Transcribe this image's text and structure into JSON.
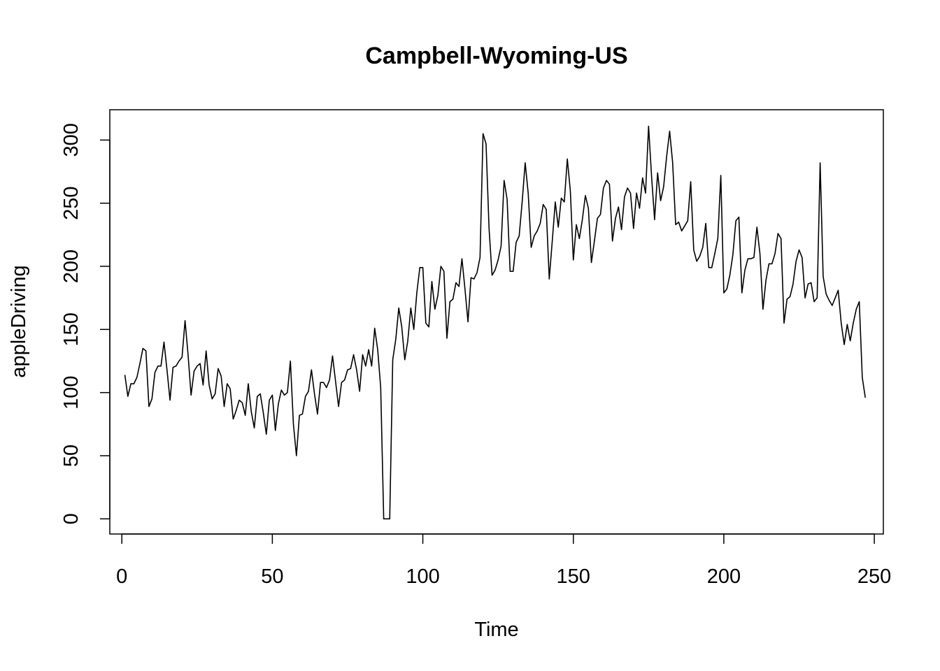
{
  "chart_data": {
    "type": "line",
    "title": "Campbell-Wyoming-US",
    "xlabel": "Time",
    "ylabel": "appleDriving",
    "xlim": [
      -4,
      253
    ],
    "ylim": [
      -12,
      324
    ],
    "x_ticks": [
      0,
      50,
      100,
      150,
      200,
      250
    ],
    "y_ticks": [
      0,
      50,
      100,
      150,
      200,
      250,
      300
    ],
    "grid": false,
    "line_color": "#000000",
    "series": [
      {
        "x_start": 1,
        "values": [
          114,
          97,
          107,
          107,
          112,
          123,
          135,
          133,
          89,
          95,
          116,
          121,
          121,
          140,
          118,
          94,
          120,
          121,
          125,
          128,
          157,
          130,
          98,
          117,
          121,
          123,
          106,
          133,
          106,
          95,
          99,
          119,
          113,
          89,
          107,
          103,
          79,
          86,
          94,
          92,
          82,
          107,
          85,
          72,
          97,
          99,
          84,
          67,
          94,
          98,
          70,
          91,
          102,
          98,
          100,
          125,
          75,
          50,
          82,
          83,
          97,
          101,
          118,
          99,
          83,
          108,
          108,
          104,
          110,
          129,
          109,
          89,
          108,
          110,
          118,
          119,
          130,
          118,
          101,
          130,
          121,
          134,
          121,
          151,
          134,
          104,
          0,
          0,
          0,
          126,
          142,
          167,
          152,
          126,
          141,
          167,
          150,
          179,
          199,
          199,
          155,
          152,
          188,
          166,
          177,
          200,
          196,
          143,
          172,
          174,
          187,
          184,
          206,
          182,
          156,
          191,
          190,
          195,
          207,
          305,
          297,
          230,
          193,
          197,
          205,
          216,
          268,
          253,
          196,
          196,
          219,
          224,
          251,
          282,
          258,
          215,
          224,
          228,
          234,
          249,
          245,
          190,
          220,
          251,
          231,
          254,
          251,
          285,
          260,
          205,
          233,
          222,
          237,
          256,
          246,
          203,
          220,
          238,
          241,
          262,
          268,
          265,
          220,
          238,
          247,
          229,
          255,
          262,
          258,
          230,
          258,
          246,
          270,
          258,
          311,
          271,
          237,
          274,
          252,
          263,
          287,
          307,
          282,
          233,
          235,
          228,
          232,
          236,
          267,
          213,
          204,
          208,
          215,
          234,
          199,
          199,
          210,
          222,
          272,
          179,
          182,
          193,
          209,
          236,
          239,
          179,
          197,
          206,
          206,
          207,
          231,
          210,
          166,
          189,
          202,
          202,
          210,
          226,
          222,
          155,
          174,
          176,
          186,
          204,
          213,
          207,
          175,
          186,
          187,
          172,
          175,
          282,
          192,
          178,
          173,
          169,
          175,
          181,
          155,
          138,
          154,
          141,
          155,
          166,
          172,
          112,
          96
        ]
      }
    ]
  }
}
